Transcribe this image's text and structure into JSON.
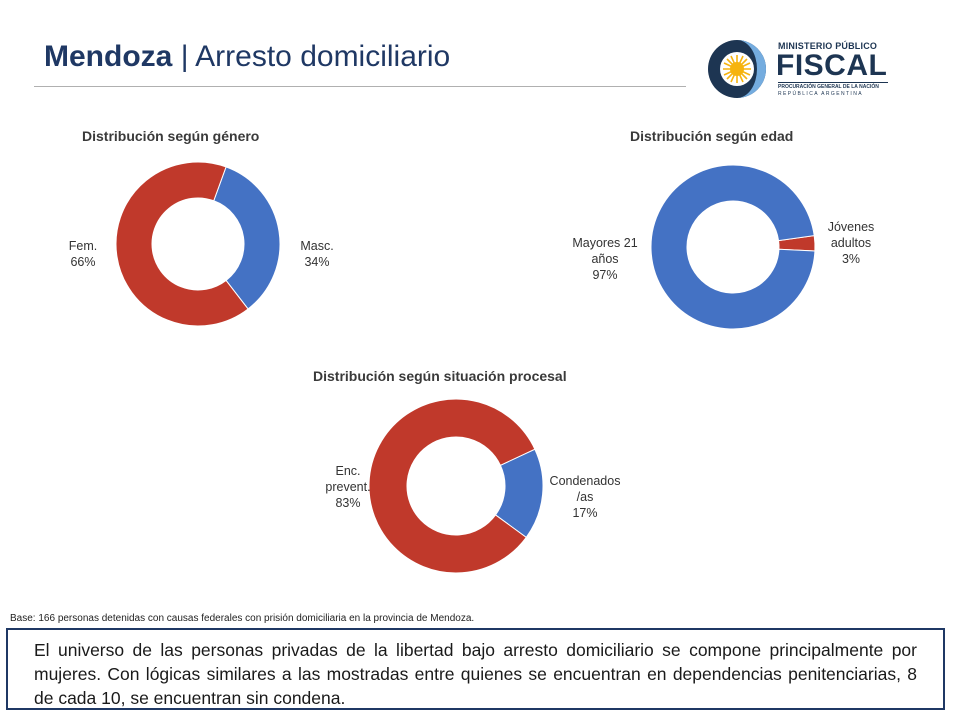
{
  "header": {
    "title_bold": "Mendoza",
    "title_sep": "|",
    "title_rest": "Arresto domiciliario"
  },
  "logo": {
    "line1": "MINISTERIO PÚBLICO",
    "line2": "FISCAL",
    "line3": "PROCURACIÓN GENERAL DE LA NACIÓN",
    "line4": "REPÚBLICA ARGENTINA",
    "colors": {
      "navy": "#1d3552",
      "sky": "#74acdf",
      "sun": "#f6b40e"
    }
  },
  "chart_data": [
    {
      "type": "pie",
      "donut": true,
      "title": "Distribución según género",
      "slices": [
        {
          "label": "Masc.",
          "value": 34,
          "display": "34%",
          "color": "#4472c4"
        },
        {
          "label": "Fem.",
          "value": 66,
          "display": "66%",
          "color": "#c0392b"
        }
      ]
    },
    {
      "type": "pie",
      "donut": true,
      "title": "Distribución según edad",
      "slices": [
        {
          "label": "Jóvenes adultos",
          "label_lines": [
            "Jóvenes",
            "adultos"
          ],
          "value": 3,
          "display": "3%",
          "color": "#c0392b"
        },
        {
          "label": "Mayores 21 años",
          "label_lines": [
            "Mayores 21",
            "años"
          ],
          "value": 97,
          "display": "97%",
          "color": "#4472c4"
        }
      ]
    },
    {
      "type": "pie",
      "donut": true,
      "title": "Distribución según situación procesal",
      "slices": [
        {
          "label": "Condenados/as",
          "label_lines": [
            "Condenados",
            "/as"
          ],
          "value": 17,
          "display": "17%",
          "color": "#4472c4"
        },
        {
          "label": "Enc. prevent.",
          "label_lines": [
            "Enc.",
            "prevent."
          ],
          "value": 83,
          "display": "83%",
          "color": "#c0392b"
        }
      ]
    }
  ],
  "footnote": "Base: 166 personas detenidas con causas federales con prisión domiciliaria en la provincia de Mendoza.",
  "conclusion": "El universo de las personas privadas de la libertad bajo arresto domiciliario se compone principalmente por mujeres. Con lógicas similares a las mostradas entre quienes se encuentran en dependencias penitenciarias, 8 de cada 10, se encuentran sin condena."
}
